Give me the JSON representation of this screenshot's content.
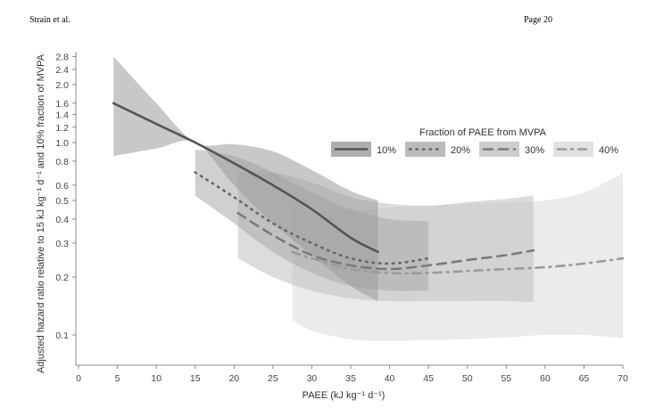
{
  "header": {
    "left": "Strain et al.",
    "right": "Page 20"
  },
  "chart_data": {
    "type": "line",
    "title": "",
    "xlabel": "PAEE (kJ kg⁻¹ d⁻¹)",
    "ylabel": "Adjusted hazard ratio relative to 15 kJ kg⁻¹ d⁻¹ and 10% fraction of MVPA",
    "xlim": [
      0,
      70
    ],
    "ylim": [
      0.07,
      2.8
    ],
    "yscale": "log",
    "xticks": [
      0,
      5,
      10,
      15,
      20,
      25,
      30,
      35,
      40,
      45,
      50,
      55,
      60,
      65,
      70
    ],
    "yticks": [
      0.1,
      0.2,
      0.3,
      0.4,
      0.5,
      0.6,
      0.8,
      1.0,
      1.2,
      1.4,
      1.6,
      2.0,
      2.4,
      2.8
    ],
    "ytick_labels": [
      "0.1",
      "0.2",
      "0.3",
      "0.4",
      "0.5",
      "0.6",
      "0.8",
      "1.0",
      "1.2",
      "1.4",
      "1.6",
      "2.0",
      "2.4",
      "2.8"
    ],
    "legend": {
      "title": "Fraction of PAEE from MVPA",
      "position": "top-right"
    },
    "series": [
      {
        "name": "10%",
        "style": "solid",
        "color": "#555555",
        "band": "#9a9a9a",
        "x": [
          4.5,
          10,
          15,
          20,
          25,
          30,
          35,
          38.5
        ],
        "y": [
          1.6,
          1.25,
          1.0,
          0.78,
          0.6,
          0.45,
          0.32,
          0.27
        ],
        "upper": [
          2.8,
          1.6,
          1.0,
          0.98,
          0.9,
          0.72,
          0.56,
          0.5
        ],
        "lower": [
          0.85,
          0.93,
          1.0,
          0.6,
          0.38,
          0.26,
          0.18,
          0.15
        ]
      },
      {
        "name": "20%",
        "style": "dotted",
        "color": "#666666",
        "band": "#aaaaaa",
        "x": [
          15,
          20,
          25,
          30,
          35,
          40,
          45
        ],
        "y": [
          0.7,
          0.52,
          0.38,
          0.3,
          0.25,
          0.235,
          0.25
        ],
        "upper": [
          0.92,
          0.85,
          0.7,
          0.55,
          0.45,
          0.4,
          0.39
        ],
        "lower": [
          0.53,
          0.38,
          0.27,
          0.21,
          0.18,
          0.17,
          0.17
        ]
      },
      {
        "name": "30%",
        "style": "dashed",
        "color": "#7a7a7a",
        "band": "#c0c0c0",
        "x": [
          20.5,
          25,
          30,
          35,
          40,
          45,
          50,
          55,
          58.5
        ],
        "y": [
          0.43,
          0.33,
          0.26,
          0.23,
          0.22,
          0.23,
          0.245,
          0.26,
          0.275
        ],
        "upper": [
          0.7,
          0.7,
          0.62,
          0.52,
          0.48,
          0.47,
          0.49,
          0.51,
          0.53
        ],
        "lower": [
          0.25,
          0.2,
          0.17,
          0.155,
          0.15,
          0.15,
          0.15,
          0.15,
          0.148
        ]
      },
      {
        "name": "40%",
        "style": "dashdot",
        "color": "#9a9a9a",
        "band": "#dadada",
        "x": [
          27.5,
          30,
          35,
          40,
          45,
          50,
          55,
          60,
          65,
          70
        ],
        "y": [
          0.27,
          0.25,
          0.22,
          0.21,
          0.21,
          0.215,
          0.22,
          0.225,
          0.235,
          0.25
        ],
        "upper": [
          0.48,
          0.44,
          0.44,
          0.46,
          0.47,
          0.48,
          0.49,
          0.5,
          0.55,
          0.69
        ],
        "lower": [
          0.12,
          0.105,
          0.095,
          0.093,
          0.094,
          0.095,
          0.097,
          0.1,
          0.1,
          0.096
        ]
      }
    ]
  }
}
